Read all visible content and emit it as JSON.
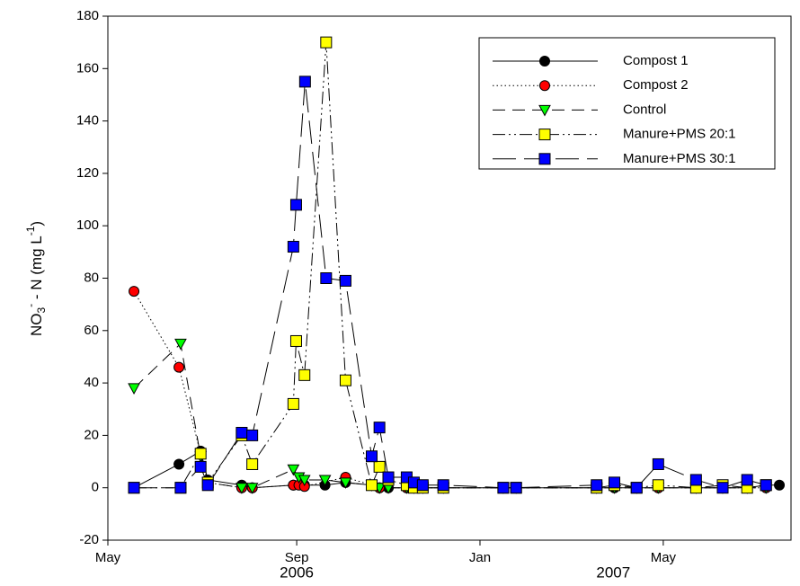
{
  "chart_data": {
    "type": "line",
    "y_label": [
      "NO",
      "3",
      "-",
      " - N (mg L",
      "-1",
      ")"
    ],
    "xlim": [
      2006.33,
      2007.56
    ],
    "ylim": [
      -20,
      180
    ],
    "xticks": [
      {
        "value": 2006.33,
        "label": "May"
      },
      {
        "value": 2006.67,
        "label": "Sep"
      },
      {
        "value": 2007.0,
        "label": "Jan"
      },
      {
        "value": 2007.33,
        "label": "May"
      }
    ],
    "year_labels": [
      {
        "value": 2006.67,
        "label": "2006"
      },
      {
        "value": 2007.24,
        "label": "2007"
      }
    ],
    "yticks": [
      -20,
      0,
      20,
      40,
      60,
      80,
      100,
      120,
      140,
      160,
      180
    ],
    "legend": "top-right",
    "series": [
      {
        "name": "Compost 1",
        "color": "#000000",
        "marker": "circle",
        "dash": "solid",
        "x": [
          2006.377,
          2006.458,
          2006.497,
          2006.51,
          2006.571,
          2006.59,
          2006.664,
          2006.684,
          2006.721,
          2006.758,
          2006.805,
          2006.819,
          2006.835,
          2006.868,
          2006.881,
          2006.897,
          2006.934,
          2007.042,
          2007.065,
          2007.21,
          2007.242,
          2007.282,
          2007.321,
          2007.389,
          2007.437,
          2007.481,
          2007.515,
          2007.539
        ],
        "values": [
          0,
          9,
          14,
          3,
          1,
          0,
          1,
          1,
          1,
          2,
          1,
          0,
          0,
          0,
          0,
          0,
          0,
          0,
          0,
          0,
          0,
          0,
          0,
          0,
          0,
          0,
          1,
          1
        ]
      },
      {
        "name": "Compost 2",
        "color": "#ff0000",
        "marker": "circle",
        "dash": "dotted",
        "x": [
          2006.377,
          2006.458,
          2006.497,
          2006.51,
          2006.571,
          2006.59,
          2006.664,
          2006.674,
          2006.684,
          2006.758,
          2006.805,
          2006.819,
          2006.868,
          2006.897,
          2006.934,
          2007.042,
          2007.065,
          2007.21,
          2007.282,
          2007.321,
          2007.389,
          2007.481,
          2007.515
        ],
        "values": [
          75,
          46,
          13,
          2,
          0,
          0,
          1,
          1,
          0.5,
          4,
          1,
          0,
          0,
          0,
          0,
          0,
          0,
          0,
          0,
          0,
          0,
          0,
          0
        ]
      },
      {
        "name": "Control",
        "color": "#00ff00",
        "marker": "triangle",
        "dash": "dashed",
        "x": [
          2006.377,
          2006.461,
          2006.497,
          2006.51,
          2006.571,
          2006.59,
          2006.664,
          2006.674,
          2006.684,
          2006.721,
          2006.758,
          2006.805,
          2006.819,
          2006.835,
          2006.868,
          2006.881,
          2006.897,
          2006.934,
          2007.042,
          2007.065,
          2007.21,
          2007.242,
          2007.282,
          2007.321,
          2007.389,
          2007.437,
          2007.481,
          2007.515
        ],
        "values": [
          38,
          55,
          12,
          2,
          0,
          0,
          7,
          4,
          3,
          3,
          2,
          1,
          0,
          0,
          0,
          0,
          0,
          0,
          0,
          0,
          0,
          0,
          0,
          0,
          0,
          0,
          0,
          0
        ]
      },
      {
        "name": "Manure+PMS 20:1",
        "color": "#ffff00",
        "marker": "square",
        "dash": "dashdotdot",
        "x": [
          2006.377,
          2006.461,
          2006.497,
          2006.51,
          2006.571,
          2006.59,
          2006.664,
          2006.669,
          2006.684,
          2006.723,
          2006.758,
          2006.805,
          2006.819,
          2006.835,
          2006.868,
          2006.881,
          2006.897,
          2006.934,
          2007.042,
          2007.065,
          2007.21,
          2007.242,
          2007.282,
          2007.321,
          2007.389,
          2007.437,
          2007.481,
          2007.515
        ],
        "values": [
          0,
          0,
          13,
          2,
          20,
          9,
          32,
          56,
          43,
          170,
          41,
          1,
          8,
          3,
          1,
          0,
          0,
          0,
          0,
          0,
          0,
          1,
          0,
          1,
          0,
          1,
          0,
          1
        ]
      },
      {
        "name": "Manure+PMS 30:1",
        "color": "#0000ff",
        "marker": "square",
        "dash": "longdash",
        "x": [
          2006.377,
          2006.461,
          2006.497,
          2006.51,
          2006.571,
          2006.59,
          2006.664,
          2006.669,
          2006.685,
          2006.723,
          2006.758,
          2006.805,
          2006.819,
          2006.835,
          2006.868,
          2006.881,
          2006.897,
          2006.934,
          2007.042,
          2007.065,
          2007.21,
          2007.242,
          2007.282,
          2007.321,
          2007.389,
          2007.437,
          2007.481,
          2007.515
        ],
        "values": [
          0,
          0,
          8,
          1,
          21,
          20,
          92,
          108,
          155,
          80,
          79,
          12,
          23,
          4,
          4,
          2,
          1,
          1,
          0,
          0,
          1,
          2,
          0,
          9,
          3,
          0,
          3,
          1
        ]
      }
    ]
  }
}
